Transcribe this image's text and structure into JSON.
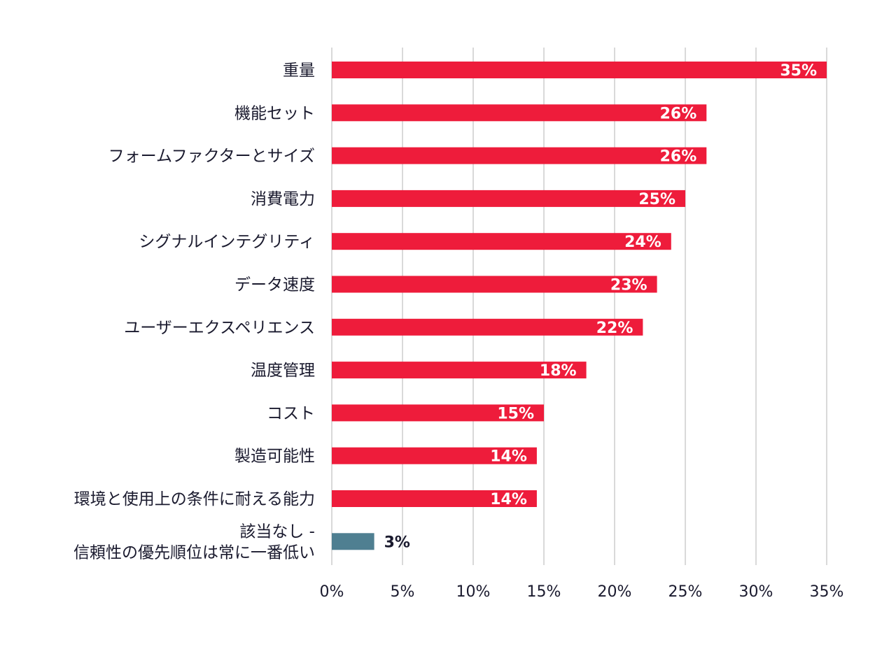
{
  "chart_data": {
    "type": "bar",
    "orientation": "horizontal",
    "categories": [
      "重量",
      "機能セット",
      "フォームファクターとサイズ",
      "消費電力",
      "シグナルインテグリティ",
      "データ速度",
      "ユーザーエクスペリエンス",
      "温度管理",
      "コスト",
      "製造可能性",
      "環境と使用上の条件に耐える能力",
      "該当なし -\n信頼性の優先順位は常に一番低い"
    ],
    "values": [
      35,
      26.5,
      26.5,
      25,
      24,
      23,
      22,
      18,
      15,
      14.5,
      14.5,
      3
    ],
    "data_labels": [
      "35%",
      "26%",
      "26%",
      "25%",
      "24%",
      "23%",
      "22%",
      "18%",
      "15%",
      "14%",
      "14%",
      "3%"
    ],
    "xlim": [
      0,
      35
    ],
    "xticks": [
      0,
      5,
      10,
      15,
      20,
      25,
      30,
      35
    ],
    "xtick_labels": [
      "0%",
      "5%",
      "10%",
      "15%",
      "20%",
      "25%",
      "30%",
      "35%"
    ],
    "title": "",
    "xlabel": "",
    "ylabel": "",
    "grid": "vertical",
    "legend": "none",
    "colors": {
      "primary_bar": "#ee1c3b",
      "last_bar": "#4f7f91",
      "label_inside": "#ffffff",
      "label_outside": "#1a1a2e"
    }
  }
}
